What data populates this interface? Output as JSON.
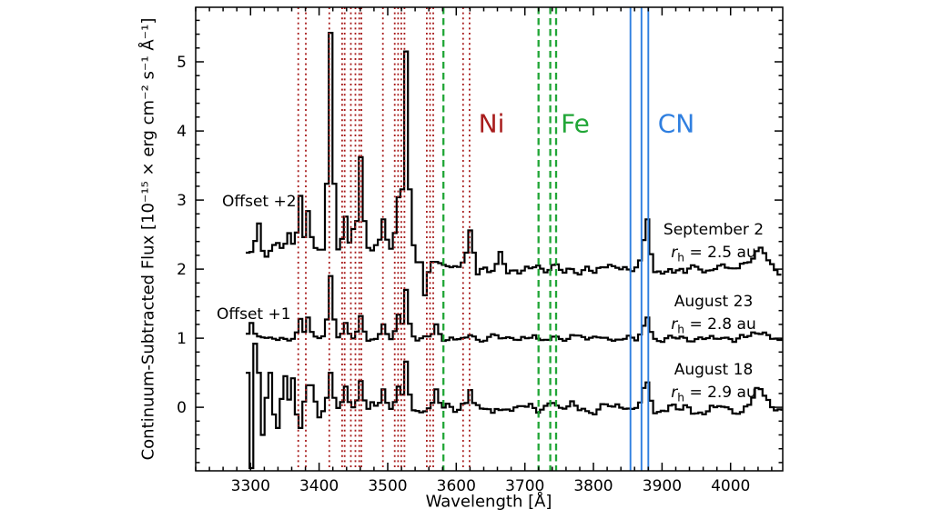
{
  "labels": {
    "xlabel": "Wavelength [Å]",
    "ylabel": "Continuum-Subtracted Flux [10⁻¹⁵ × erg cm⁻² s⁻¹ Å⁻¹]",
    "offset_top": "Offset +2",
    "offset_mid": "Offset +1",
    "element_ni": "Ni",
    "element_fe": "Fe",
    "element_cn": "CN"
  },
  "annotations": [
    {
      "date": "September 2",
      "r_var": "r",
      "r_sub": "h",
      "r_value": "= 2.5 au"
    },
    {
      "date": "August 23",
      "r_var": "r",
      "r_sub": "h",
      "r_value": "= 2.8 au"
    },
    {
      "date": "August 18",
      "r_var": "r",
      "r_sub": "h",
      "r_value": "= 2.9 au"
    }
  ],
  "colors": {
    "ni": "#A81D1D",
    "fe": "#21A637",
    "cn": "#2F7FE0",
    "spectrum": "#000000",
    "axis": "#000000"
  },
  "chart_data": {
    "type": "line",
    "xlabel": "Wavelength [Å]",
    "ylabel": "Continuum-Subtracted Flux [10⁻¹⁵ × erg cm⁻² s⁻¹ Å⁻¹]",
    "xlim": [
      3220,
      4076
    ],
    "ylim": [
      -0.92,
      5.79
    ],
    "x_ticks_major": [
      3300,
      3400,
      3500,
      3600,
      3700,
      3800,
      3900,
      4000
    ],
    "x_minor_step": 20,
    "y_ticks_major": [
      0,
      1,
      2,
      3,
      4,
      5
    ],
    "y_minor_step": 0.2,
    "grid": false,
    "line_markers": {
      "Ni": {
        "style": "dotted",
        "wavelengths": [
          3369.6,
          3380.6,
          3414.8,
          3433.6,
          3437.3,
          3446.3,
          3452.9,
          3458.5,
          3461.7,
          3493.0,
          3510.3,
          3515.1,
          3519.8,
          3524.5,
          3557.0,
          3561.7,
          3566.4,
          3609.9,
          3619.4
        ]
      },
      "Fe": {
        "style": "dashed",
        "wavelengths": [
          3581.2,
          3719.9,
          3737.1,
          3745.6
        ]
      },
      "CN": {
        "style": "solid",
        "wavelengths": [
          3854.0,
          3870.0,
          3880.0
        ]
      }
    },
    "series": [
      {
        "name": "September 2",
        "rh_au": 2.5,
        "offset": 2,
        "seed": 7,
        "x_start": 3293,
        "x_end": 4075,
        "bin_width": 5.5,
        "baseline": [
          [
            3293,
            3540,
            2.3
          ],
          [
            3540,
            3625,
            2.1
          ],
          [
            3625,
            4075,
            2.0
          ]
        ],
        "noise": [
          [
            3293,
            3560,
            0.1
          ],
          [
            3560,
            4075,
            0.075
          ]
        ],
        "peaks": [
          [
            3308,
            2.66
          ],
          [
            3318,
            2.18
          ],
          [
            3352,
            2.52
          ],
          [
            3369.6,
            3.06
          ],
          [
            3380.6,
            2.84
          ],
          [
            3414.8,
            5.42
          ],
          [
            3437.3,
            2.76
          ],
          [
            3446.3,
            2.58
          ],
          [
            3458.5,
            3.62
          ],
          [
            3493,
            2.72
          ],
          [
            3510.3,
            3.04
          ],
          [
            3524.5,
            5.15
          ],
          [
            3544,
            2.1
          ],
          [
            3553,
            1.62
          ],
          [
            3619.4,
            2.56
          ],
          [
            3660,
            2.25
          ],
          [
            3870,
            2.42
          ],
          [
            3877,
            2.72
          ]
        ],
        "bumps": [
          [
            4038,
            0.3,
            16
          ]
        ]
      },
      {
        "name": "August 23",
        "rh_au": 2.8,
        "offset": 1,
        "seed": 13,
        "x_start": 3293,
        "x_end": 4075,
        "bin_width": 5.5,
        "baseline": [
          [
            3293,
            4075,
            1.0
          ]
        ],
        "noise": [
          [
            3293,
            4075,
            0.05
          ]
        ],
        "peaks": [
          [
            3300,
            1.22
          ],
          [
            3369.6,
            1.28
          ],
          [
            3380.6,
            1.3
          ],
          [
            3414.8,
            1.9
          ],
          [
            3437.3,
            1.22
          ],
          [
            3458.5,
            1.32
          ],
          [
            3493,
            1.2
          ],
          [
            3510.3,
            1.34
          ],
          [
            3524.5,
            1.7
          ],
          [
            3566,
            1.2
          ],
          [
            3870,
            1.18
          ],
          [
            3877,
            1.3
          ]
        ],
        "bumps": [
          [
            4040,
            0.08,
            15
          ]
        ]
      },
      {
        "name": "August 18",
        "rh_au": 2.9,
        "offset": 0,
        "seed": 29,
        "x_start": 3293,
        "x_end": 4075,
        "bin_width": 5.5,
        "baseline": [
          [
            3293,
            4075,
            -0.02
          ]
        ],
        "noise": [
          [
            3293,
            3395,
            0.14
          ],
          [
            3395,
            4075,
            0.085
          ]
        ],
        "peaks": [
          [
            3294,
            0.5
          ],
          [
            3299,
            -0.88
          ],
          [
            3305,
            0.92
          ],
          [
            3311,
            0.5
          ],
          [
            3317,
            -0.4
          ],
          [
            3328,
            0.5
          ],
          [
            3339,
            -0.3
          ],
          [
            3349,
            0.45
          ],
          [
            3360,
            0.42
          ],
          [
            3371,
            -0.3
          ],
          [
            3381,
            0.32
          ],
          [
            3389,
            0.32
          ],
          [
            3414.8,
            0.5
          ],
          [
            3433.6,
            0.3
          ],
          [
            3458.5,
            0.38
          ],
          [
            3493,
            0.26
          ],
          [
            3510.3,
            0.3
          ],
          [
            3524.5,
            0.66
          ],
          [
            3566,
            0.26
          ],
          [
            3619,
            0.25
          ],
          [
            3870,
            0.28
          ],
          [
            3877,
            0.36
          ]
        ],
        "bumps": [
          [
            4040,
            0.22,
            14
          ],
          [
            3760,
            0.08,
            20
          ]
        ]
      }
    ]
  }
}
